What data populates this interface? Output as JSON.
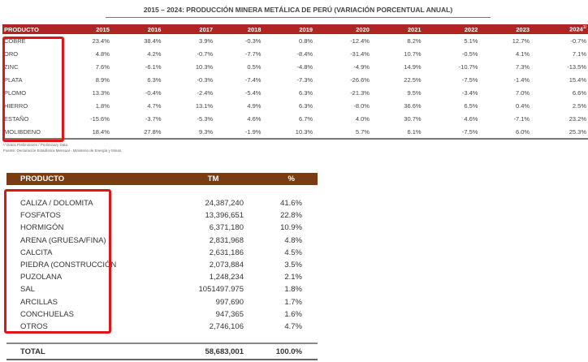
{
  "metal_table": {
    "title": "2015 – 2024: PRODUCCIÓN MINERA METÁLICA DE PERÚ (VARIACIÓN PORCENTUAL ANUAL)",
    "header": [
      "PRODUCTO",
      "2015",
      "2016",
      "2017",
      "2018",
      "2019",
      "2020",
      "2021",
      "2022",
      "2023",
      "2024"
    ],
    "last_year_sup": "1/",
    "rows": [
      [
        "COBRE",
        "23.4%",
        "38.4%",
        "3.9%",
        "-0.3%",
        "0.8%",
        "-12.4%",
        "8.2%",
        "5.1%",
        "12.7%",
        "-0.7%"
      ],
      [
        "ORO",
        "4.8%",
        "4.2%",
        "-0.7%",
        "-7.7%",
        "-8.4%",
        "-31.4%",
        "10.7%",
        "-0.5%",
        "4.1%",
        "7.1%"
      ],
      [
        "ZINC",
        "7.6%",
        "-6.1%",
        "10.3%",
        "0.5%",
        "-4.8%",
        "-4.9%",
        "14.9%",
        "-10.7%",
        "7.3%",
        "-13.5%"
      ],
      [
        "PLATA",
        "8.9%",
        "6.3%",
        "-0.3%",
        "-7.4%",
        "-7.3%",
        "-26.6%",
        "22.5%",
        "-7.5%",
        "-1.4%",
        "15.4%"
      ],
      [
        "PLOMO",
        "13.3%",
        "-0.4%",
        "-2.4%",
        "-5.4%",
        "6.3%",
        "-21.3%",
        "9.5%",
        "-3.4%",
        "7.0%",
        "6.6%"
      ],
      [
        "HIERRO",
        "1.8%",
        "4.7%",
        "13.1%",
        "4.9%",
        "6.3%",
        "-8.0%",
        "36.6%",
        "6.5%",
        "0.4%",
        "2.5%"
      ],
      [
        "ESTAÑO",
        "-15.6%",
        "-3.7%",
        "-5.3%",
        "4.6%",
        "6.7%",
        "4.0%",
        "30.7%",
        "4.6%",
        "-7.1%",
        "23.2%"
      ],
      [
        "MOLIBDENO",
        "18.4%",
        "27.8%",
        "9.3%",
        "-1.9%",
        "10.3%",
        "5.7%",
        "6.1%",
        "-7.5%",
        "6.0%",
        "25.3%"
      ]
    ],
    "footnote1": "¹/ Datos Preliminares / Preliminary Data.",
    "footnote2": "Fuente: Declaración Estadística Mensual - Ministerio de Energía y Minas."
  },
  "nonmetal_table": {
    "header": [
      "PRODUCTO",
      "TM",
      "%"
    ],
    "rows": [
      [
        "CALIZA / DOLOMITA",
        "24,387,240",
        "41.6%"
      ],
      [
        "FOSFATOS",
        "13,396,651",
        "22.8%"
      ],
      [
        "HORMIGÓN",
        "6,371,180",
        "10.9%"
      ],
      [
        "ARENA (GRUESA/FINA)",
        "2,831,968",
        "4.8%"
      ],
      [
        "CALCITA",
        "2,631,186",
        "4.5%"
      ],
      [
        "PIEDRA (CONSTRUCCIÓN",
        "2,073,884",
        "3.5%"
      ],
      [
        "PUZOLANA",
        "1,248,234",
        "2.1%"
      ],
      [
        "SAL",
        "1051497.975",
        "1.8%"
      ],
      [
        "ARCILLAS",
        "997,690",
        "1.7%"
      ],
      [
        "CONCHUELAS",
        "947,365",
        "1.6%"
      ],
      [
        "OTROS",
        "2,746,106",
        "4.7%"
      ]
    ],
    "total": [
      "TOTAL",
      "58,683,001",
      "100.0%"
    ]
  },
  "colors": {
    "metal_header": "#b02424",
    "nonmetal_header": "#7a3d12",
    "highlight_box": "#e01515"
  }
}
